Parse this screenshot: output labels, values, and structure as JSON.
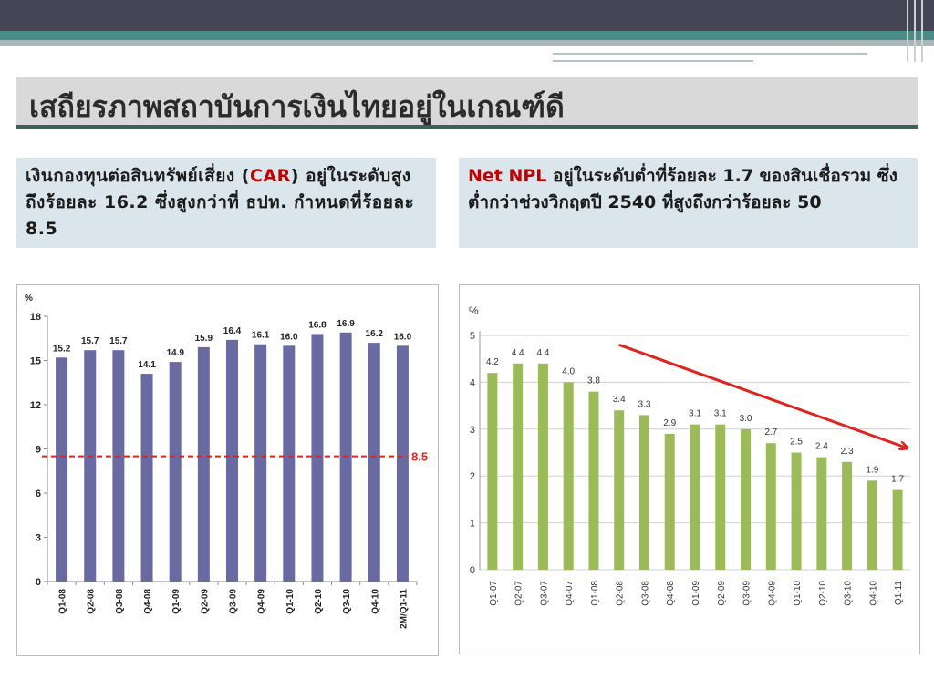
{
  "title": "เสถียรภาพสถาบันการเงินไทยอยู่ในเกณฑ์ดี",
  "left_box": {
    "text_before": "เงินกองทุนต่อสินทรัพย์เสี่ยง (",
    "highlight": "CAR",
    "text_after": ") อยู่ในระดับสูงถึงร้อยละ 16.2 ซึ่งสูงกว่าที่ ธปท. กำหนดที่ร้อยละ 8.5"
  },
  "right_box": {
    "highlight": "Net NPL",
    "text_after": " อยู่ในระดับต่ำที่ร้อยละ 1.7 ของสินเชื่อรวม ซึ่งต่ำกว่าช่วงวิกฤตปี 2540 ที่สูงถึงกว่าร้อยละ 50"
  },
  "colors": {
    "car_bar": "#6a6aa3",
    "npl_bar": "#9bbb59",
    "threshold": "#e0231b",
    "arrow": "#e0231b"
  },
  "chart_data": [
    {
      "type": "bar",
      "title": "",
      "ylabel": "%",
      "xlabel": "",
      "ylim": [
        0,
        18
      ],
      "yticks": [
        0,
        3,
        6,
        9,
        12,
        15,
        18
      ],
      "categories": [
        "Q1-08",
        "Q2-08",
        "Q3-08",
        "Q4-08",
        "Q1-09",
        "Q2-09",
        "Q3-09",
        "Q4-09",
        "Q1-10",
        "Q2-10",
        "Q3-10",
        "Q4-10",
        "2M/Q1-11"
      ],
      "values": [
        15.2,
        15.7,
        15.7,
        14.1,
        14.9,
        15.9,
        16.4,
        16.1,
        16.0,
        16.8,
        16.9,
        16.2,
        16.0
      ],
      "value_labels": [
        "15.2",
        "15.7",
        "15.7",
        "14.1",
        "14.9",
        "15.9",
        "16.4",
        "16.1",
        "16.0",
        "16.8",
        "16.9",
        "16.2",
        "16.0"
      ],
      "reference_line": {
        "value": 8.5,
        "label": "8.5",
        "style": "dashed"
      },
      "grid": false
    },
    {
      "type": "bar",
      "title": "",
      "ylabel": "%",
      "xlabel": "",
      "ylim": [
        0,
        5
      ],
      "yticks": [
        0,
        1,
        2,
        3,
        4,
        5
      ],
      "categories": [
        "Q1-07",
        "Q2-07",
        "Q3-07",
        "Q4-07",
        "Q1-08",
        "Q2-08",
        "Q3-08",
        "Q4-08",
        "Q1-09",
        "Q2-09",
        "Q3-09",
        "Q4-09",
        "Q1-10",
        "Q2-10",
        "Q3-10",
        "Q4-10",
        "Q1-11"
      ],
      "values": [
        4.2,
        4.4,
        4.4,
        4.0,
        3.8,
        3.4,
        3.3,
        2.9,
        3.1,
        3.1,
        3.0,
        2.7,
        2.5,
        2.4,
        2.3,
        1.9,
        1.7
      ],
      "value_labels": [
        "4.2",
        "4.4",
        "4.4",
        "4.0",
        "3.8",
        "3.4",
        "3.3",
        "2.9",
        "3.1",
        "3.1",
        "3.0",
        "2.7",
        "2.5",
        "2.4",
        "2.3",
        "1.9",
        "1.7"
      ],
      "trend_arrow": {
        "from_value": 4.8,
        "to_value": 2.6,
        "direction": "down"
      },
      "grid": true
    }
  ]
}
